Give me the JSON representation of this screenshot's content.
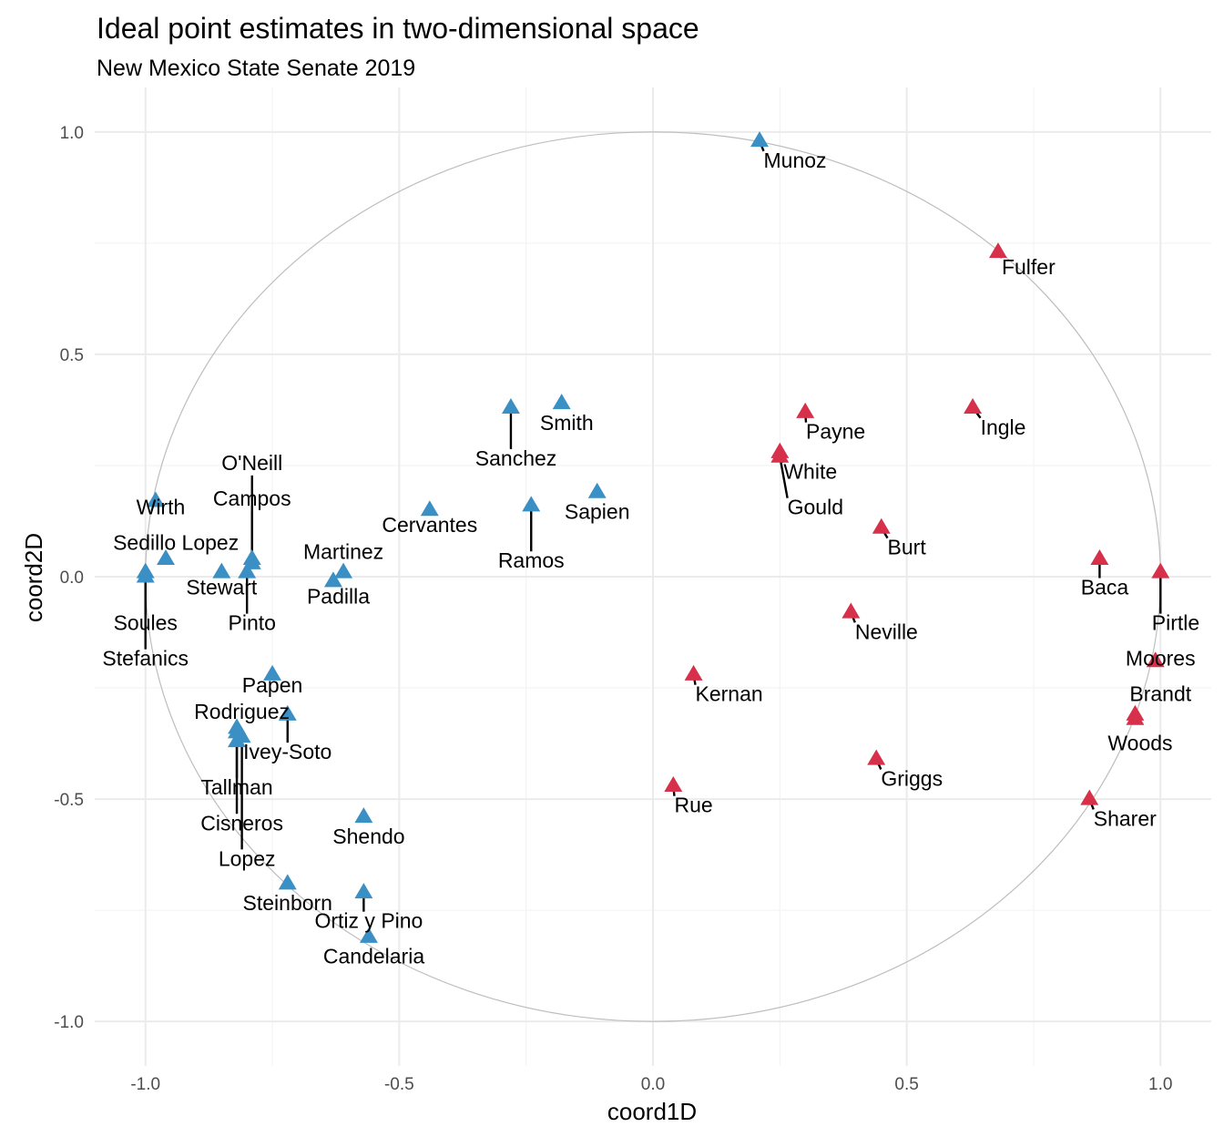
{
  "chart_data": {
    "type": "scatter",
    "title": "Ideal point estimates in two-dimensional space",
    "subtitle": "New Mexico State Senate 2019",
    "xlabel": "coord1D",
    "ylabel": "coord2D",
    "xlim": [
      -1.1,
      1.1
    ],
    "ylim": [
      -1.1,
      1.1
    ],
    "xticks": [
      -1.0,
      -0.5,
      0.0,
      0.5,
      1.0
    ],
    "yticks": [
      -1.0,
      -0.5,
      0.0,
      0.5,
      1.0
    ],
    "xtick_labels": [
      "-1.0",
      "-0.5",
      "0.0",
      "0.5",
      "1.0"
    ],
    "ytick_labels": [
      "-1.0",
      "-0.5",
      "0.0",
      "0.5",
      "1.0"
    ],
    "grid": true,
    "unit_circle": true,
    "colors": {
      "dem": "#3a8fc4",
      "rep": "#d6304a",
      "circle": "#bdbdbd",
      "grid": "#ebebeb"
    },
    "series": [
      {
        "party": "dem",
        "points": [
          {
            "name": "Munoz",
            "x": 0.21,
            "y": 0.98,
            "lx": 0.28,
            "ly": 0.92
          },
          {
            "name": "Smith",
            "x": -0.18,
            "y": 0.39,
            "lx": -0.17,
            "ly": 0.33
          },
          {
            "name": "Sanchez",
            "x": -0.28,
            "y": 0.38,
            "lx": -0.27,
            "ly": 0.25
          },
          {
            "name": "Sapien",
            "x": -0.11,
            "y": 0.19,
            "lx": -0.11,
            "ly": 0.13
          },
          {
            "name": "Cervantes",
            "x": -0.44,
            "y": 0.15,
            "lx": -0.44,
            "ly": 0.1
          },
          {
            "name": "Ramos",
            "x": -0.24,
            "y": 0.16,
            "lx": -0.24,
            "ly": 0.02
          },
          {
            "name": "Wirth",
            "x": -0.98,
            "y": 0.17,
            "lx": -0.97,
            "ly": 0.14
          },
          {
            "name": "O'Neill",
            "x": -0.79,
            "y": 0.04,
            "lx": -0.79,
            "ly": 0.24
          },
          {
            "name": "Campos",
            "x": -0.79,
            "y": 0.03,
            "lx": -0.79,
            "ly": 0.16
          },
          {
            "name": "Sedillo Lopez",
            "x": -0.96,
            "y": 0.04,
            "lx": -0.94,
            "ly": 0.06
          },
          {
            "name": "Martinez",
            "x": -0.61,
            "y": 0.01,
            "lx": -0.61,
            "ly": 0.04
          },
          {
            "name": "Padilla",
            "x": -0.63,
            "y": -0.01,
            "lx": -0.62,
            "ly": -0.06
          },
          {
            "name": "Stewart",
            "x": -0.85,
            "y": 0.01,
            "lx": -0.85,
            "ly": -0.04
          },
          {
            "name": "Pinto",
            "x": -0.8,
            "y": 0.01,
            "lx": -0.79,
            "ly": -0.12
          },
          {
            "name": "Soules",
            "x": -1.0,
            "y": 0.01,
            "lx": -1.0,
            "ly": -0.12
          },
          {
            "name": "Stefanics",
            "x": -1.0,
            "y": 0.0,
            "lx": -1.0,
            "ly": -0.2
          },
          {
            "name": "Papen",
            "x": -0.75,
            "y": -0.22,
            "lx": -0.75,
            "ly": -0.26
          },
          {
            "name": "Ivey-Soto",
            "x": -0.72,
            "y": -0.31,
            "lx": -0.72,
            "ly": -0.41
          },
          {
            "name": "Rodriguez",
            "x": -0.82,
            "y": -0.35,
            "lx": -0.81,
            "ly": -0.32
          },
          {
            "name": "Tallman",
            "x": -0.82,
            "y": -0.37,
            "lx": -0.82,
            "ly": -0.49
          },
          {
            "name": "Cisneros",
            "x": -0.82,
            "y": -0.34,
            "lx": -0.81,
            "ly": -0.57
          },
          {
            "name": "Lopez",
            "x": -0.81,
            "y": -0.36,
            "lx": -0.8,
            "ly": -0.65
          },
          {
            "name": "Shendo",
            "x": -0.57,
            "y": -0.54,
            "lx": -0.56,
            "ly": -0.6
          },
          {
            "name": "Steinborn",
            "x": -0.72,
            "y": -0.69,
            "lx": -0.72,
            "ly": -0.75
          },
          {
            "name": "Ortiz y Pino",
            "x": -0.57,
            "y": -0.71,
            "lx": -0.56,
            "ly": -0.79
          },
          {
            "name": "Candelaria",
            "x": -0.56,
            "y": -0.81,
            "lx": -0.55,
            "ly": -0.87
          }
        ]
      },
      {
        "party": "rep",
        "points": [
          {
            "name": "Fulfer",
            "x": 0.68,
            "y": 0.73,
            "lx": 0.74,
            "ly": 0.68
          },
          {
            "name": "Ingle",
            "x": 0.63,
            "y": 0.38,
            "lx": 0.69,
            "ly": 0.32
          },
          {
            "name": "Payne",
            "x": 0.3,
            "y": 0.37,
            "lx": 0.36,
            "ly": 0.31
          },
          {
            "name": "White",
            "x": 0.25,
            "y": 0.28,
            "lx": 0.31,
            "ly": 0.22
          },
          {
            "name": "Gould",
            "x": 0.25,
            "y": 0.27,
            "lx": 0.32,
            "ly": 0.14
          },
          {
            "name": "Burt",
            "x": 0.45,
            "y": 0.11,
            "lx": 0.5,
            "ly": 0.05
          },
          {
            "name": "Baca",
            "x": 0.88,
            "y": 0.04,
            "lx": 0.89,
            "ly": -0.04
          },
          {
            "name": "Pirtle",
            "x": 1.0,
            "y": 0.01,
            "lx": 1.03,
            "ly": -0.12
          },
          {
            "name": "Neville",
            "x": 0.39,
            "y": -0.08,
            "lx": 0.46,
            "ly": -0.14
          },
          {
            "name": "Moores",
            "x": 0.99,
            "y": -0.19,
            "lx": 1.0,
            "ly": -0.2
          },
          {
            "name": "Brandt",
            "x": 0.95,
            "y": -0.31,
            "lx": 1.0,
            "ly": -0.28
          },
          {
            "name": "Woods",
            "x": 0.95,
            "y": -0.32,
            "lx": 0.96,
            "ly": -0.39
          },
          {
            "name": "Kernan",
            "x": 0.08,
            "y": -0.22,
            "lx": 0.15,
            "ly": -0.28
          },
          {
            "name": "Griggs",
            "x": 0.44,
            "y": -0.41,
            "lx": 0.51,
            "ly": -0.47
          },
          {
            "name": "Rue",
            "x": 0.04,
            "y": -0.47,
            "lx": 0.08,
            "ly": -0.53
          },
          {
            "name": "Sharer",
            "x": 0.86,
            "y": -0.5,
            "lx": 0.93,
            "ly": -0.56
          }
        ]
      }
    ]
  }
}
